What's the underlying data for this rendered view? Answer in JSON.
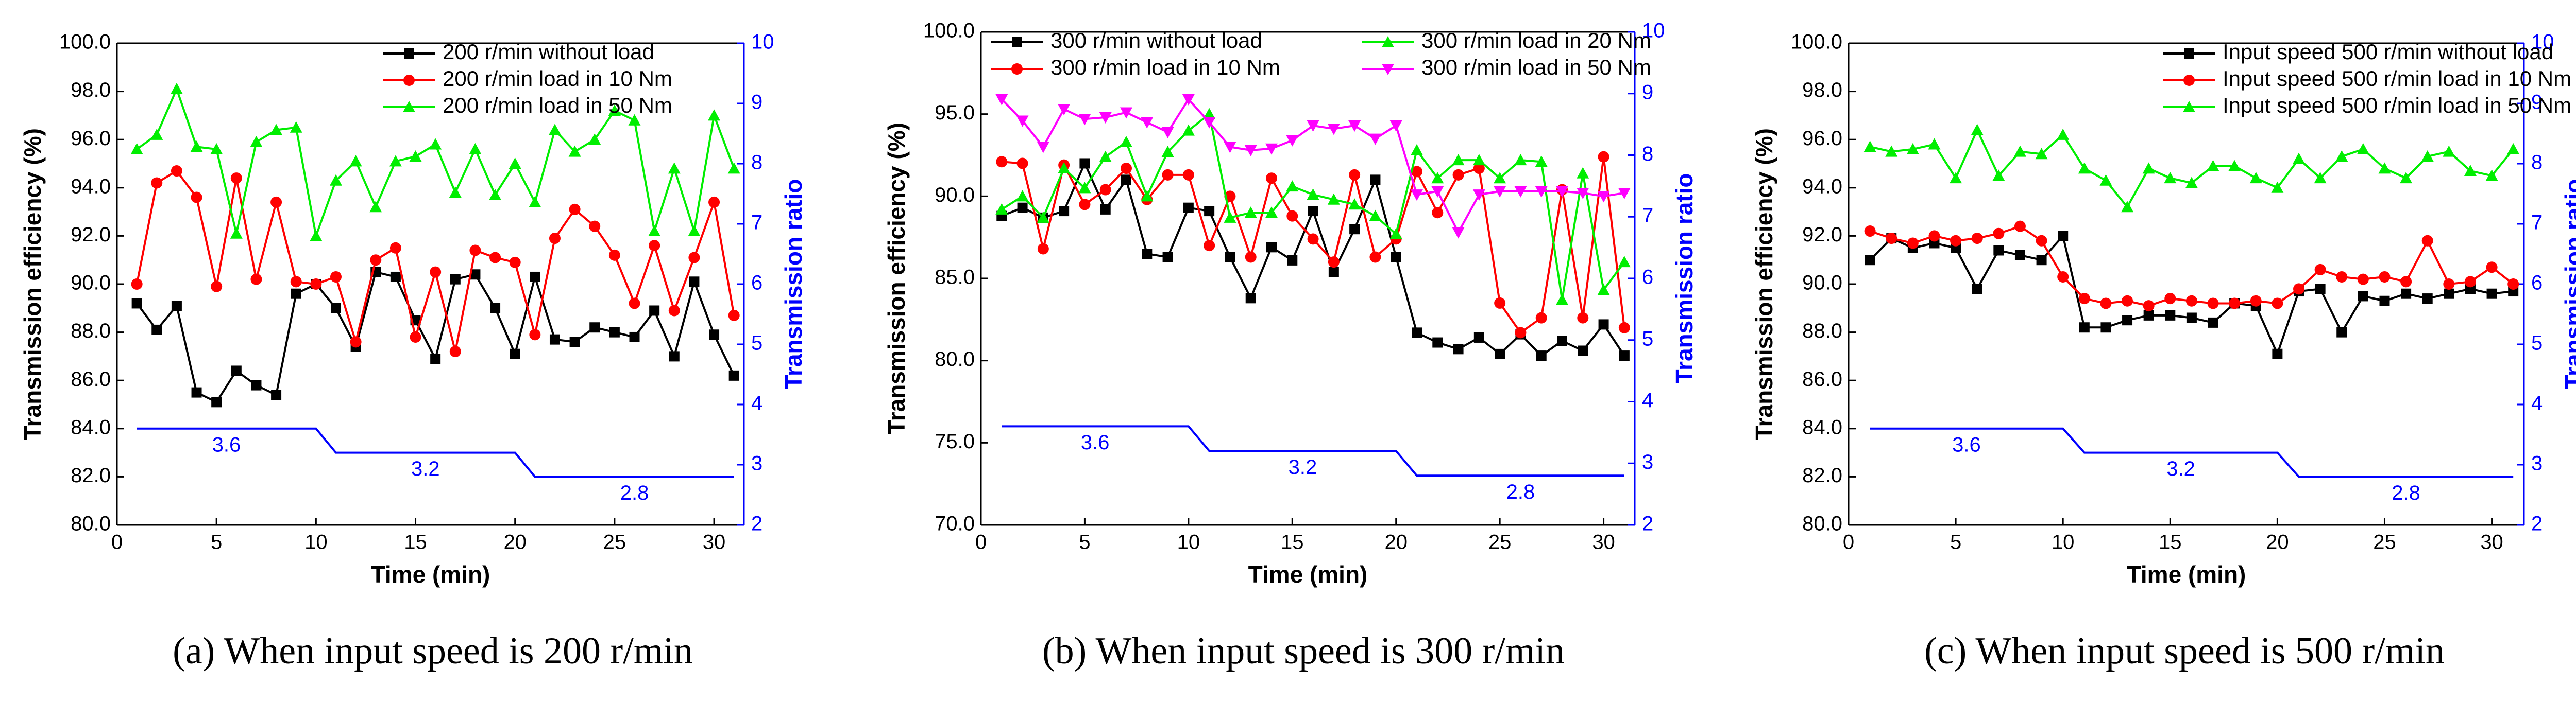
{
  "chart_data": [
    {
      "type": "line",
      "title": "(a) When input speed is 200 r/min",
      "xlabel": "Time (min)",
      "ylabel": "Transmission efficiency (%)",
      "y2label": "Transmission ratio",
      "x": [
        1,
        2,
        3,
        4,
        5,
        6,
        7,
        8,
        9,
        10,
        11,
        12,
        13,
        14,
        15,
        16,
        17,
        18,
        19,
        20,
        21,
        22,
        23,
        24,
        25,
        26,
        27,
        28,
        29,
        30,
        31
      ],
      "xlim": [
        0,
        31.5
      ],
      "xticks": [
        0,
        5,
        10,
        15,
        20,
        25,
        30
      ],
      "ylim": [
        80,
        100
      ],
      "yticks": [
        {
          "value": 80,
          "label": "80.0"
        },
        {
          "value": 82,
          "label": "82.0"
        },
        {
          "value": 84,
          "label": "84.0"
        },
        {
          "value": 86,
          "label": "86.0"
        },
        {
          "value": 88,
          "label": "88.0"
        },
        {
          "value": 90,
          "label": "90.0"
        },
        {
          "value": 92,
          "label": "92.0"
        },
        {
          "value": 94,
          "label": "94.0"
        },
        {
          "value": 96,
          "label": "96.0"
        },
        {
          "value": 98,
          "label": "98.0"
        },
        {
          "value": 100,
          "label": "100.0"
        }
      ],
      "y2lim": [
        2,
        10
      ],
      "y2ticks": [
        2,
        3,
        4,
        5,
        6,
        7,
        8,
        9,
        10
      ],
      "legend": "upper right",
      "legend_columns": 1,
      "annotations": [
        "3.6",
        "3.2",
        "2.8"
      ],
      "series": [
        {
          "name": "200 r/min without load",
          "color": "#000000",
          "marker": "square",
          "values": [
            89.2,
            88.1,
            89.1,
            85.5,
            85.1,
            86.4,
            85.8,
            85.4,
            89.6,
            90.0,
            89.0,
            87.4,
            90.5,
            90.3,
            88.5,
            86.9,
            90.2,
            90.4,
            89.0,
            87.1,
            90.3,
            87.7,
            87.6,
            88.2,
            88.0,
            87.8,
            88.9,
            87.0,
            90.1,
            87.9,
            86.2
          ]
        },
        {
          "name": "200 r/min load in 10 Nm",
          "color": "#ff0000",
          "marker": "circle",
          "values": [
            90.0,
            94.2,
            94.7,
            93.6,
            89.9,
            94.4,
            90.2,
            93.4,
            90.1,
            90.0,
            90.3,
            87.6,
            91.0,
            91.5,
            87.8,
            90.5,
            87.2,
            91.4,
            91.1,
            90.9,
            87.9,
            91.9,
            93.1,
            92.4,
            91.2,
            89.2,
            91.6,
            88.9,
            91.1,
            93.4,
            88.7
          ]
        },
        {
          "name": "200 r/min load in 50 Nm",
          "color": "#00ee00",
          "marker": "triangle",
          "values": [
            95.6,
            96.2,
            98.1,
            95.7,
            95.6,
            92.1,
            95.9,
            96.4,
            96.5,
            92.0,
            94.3,
            95.1,
            93.2,
            95.1,
            95.3,
            95.8,
            93.8,
            95.6,
            93.7,
            95.0,
            93.4,
            96.4,
            95.5,
            96.0,
            97.2,
            96.8,
            92.2,
            94.8,
            92.2,
            97.0,
            94.8
          ]
        },
        {
          "color": "#0000ff",
          "axis": "y2",
          "values": [
            3.6,
            3.6,
            3.6,
            3.6,
            3.6,
            3.6,
            3.6,
            3.6,
            3.6,
            3.6,
            3.2,
            3.2,
            3.2,
            3.2,
            3.2,
            3.2,
            3.2,
            3.2,
            3.2,
            3.2,
            2.8,
            2.8,
            2.8,
            2.8,
            2.8,
            2.8,
            2.8,
            2.8,
            2.8,
            2.8,
            2.8
          ]
        }
      ]
    },
    {
      "type": "line",
      "title": "(b) When input speed is 300 r/min",
      "xlabel": "Time (min)",
      "ylabel": "Transmission efficiency (%)",
      "y2label": "Transmission ratio",
      "x": [
        1,
        2,
        3,
        4,
        5,
        6,
        7,
        8,
        9,
        10,
        11,
        12,
        13,
        14,
        15,
        16,
        17,
        18,
        19,
        20,
        21,
        22,
        23,
        24,
        25,
        26,
        27,
        28,
        29,
        30,
        31
      ],
      "xlim": [
        0,
        31.5
      ],
      "xticks": [
        0,
        5,
        10,
        15,
        20,
        25,
        30
      ],
      "ylim": [
        70,
        100
      ],
      "yticks": [
        {
          "value": 70,
          "label": "70.0"
        },
        {
          "value": 75,
          "label": "75.0"
        },
        {
          "value": 80,
          "label": "80.0"
        },
        {
          "value": 85,
          "label": "85.0"
        },
        {
          "value": 90,
          "label": "90.0"
        },
        {
          "value": 95,
          "label": "95.0"
        },
        {
          "value": 100,
          "label": "100.0"
        }
      ],
      "y2lim": [
        2,
        10
      ],
      "y2ticks": [
        2,
        3,
        4,
        5,
        6,
        7,
        8,
        9,
        10
      ],
      "legend": "upper left",
      "legend_columns": 2,
      "annotations": [
        "3.6",
        "3.2",
        "2.8"
      ],
      "series": [
        {
          "name": "300 r/min without load",
          "color": "#000000",
          "marker": "square",
          "values": [
            88.8,
            89.3,
            88.7,
            89.1,
            92.0,
            89.2,
            91.0,
            86.5,
            86.3,
            89.3,
            89.1,
            86.3,
            83.8,
            86.9,
            86.1,
            89.1,
            85.4,
            88.0,
            91.0,
            86.3,
            81.7,
            81.1,
            80.7,
            81.4,
            80.4,
            81.6,
            80.3,
            81.2,
            80.6,
            82.2,
            80.3
          ]
        },
        {
          "name": "300 r/min load in 10 Nm",
          "color": "#ff0000",
          "marker": "circle",
          "values": [
            92.1,
            92.0,
            86.8,
            91.9,
            89.5,
            90.4,
            91.7,
            89.8,
            91.3,
            91.3,
            87.0,
            90.0,
            86.3,
            91.1,
            88.8,
            87.4,
            86.0,
            91.3,
            86.3,
            87.4,
            91.5,
            89.0,
            91.3,
            91.7,
            83.5,
            81.7,
            82.6,
            90.4,
            82.6,
            92.4,
            82.0
          ]
        },
        {
          "name": "300 r/min load in 20 Nm",
          "color": "#00ee00",
          "marker": "triangle",
          "values": [
            89.2,
            90.0,
            88.7,
            91.7,
            90.5,
            92.4,
            93.3,
            90.0,
            92.7,
            94.0,
            95.0,
            88.7,
            89.0,
            89.0,
            90.6,
            90.1,
            89.8,
            89.5,
            88.8,
            87.7,
            92.8,
            91.1,
            92.2,
            92.2,
            91.1,
            92.2,
            92.1,
            83.7,
            91.4,
            84.3,
            86.0
          ]
        },
        {
          "name": "300 r/min load in 50 Nm",
          "color": "#ff00ff",
          "marker": "triangle-down",
          "values": [
            95.9,
            94.6,
            93.0,
            95.3,
            94.7,
            94.8,
            95.1,
            94.5,
            93.9,
            95.9,
            94.5,
            93.0,
            92.8,
            92.9,
            93.4,
            94.3,
            94.1,
            94.3,
            93.5,
            94.3,
            90.1,
            90.3,
            87.8,
            90.1,
            90.3,
            90.3,
            90.3,
            90.3,
            90.2,
            90.0,
            90.2
          ]
        },
        {
          "color": "#0000ff",
          "axis": "y2",
          "values": [
            3.6,
            3.6,
            3.6,
            3.6,
            3.6,
            3.6,
            3.6,
            3.6,
            3.6,
            3.6,
            3.2,
            3.2,
            3.2,
            3.2,
            3.2,
            3.2,
            3.2,
            3.2,
            3.2,
            3.2,
            2.8,
            2.8,
            2.8,
            2.8,
            2.8,
            2.8,
            2.8,
            2.8,
            2.8,
            2.8,
            2.8
          ]
        }
      ]
    },
    {
      "type": "line",
      "title": "(c) When input speed is 500 r/min",
      "xlabel": "Time (min)",
      "ylabel": "Transmission efficiency (%)",
      "y2label": "Transmission ratio",
      "x": [
        1,
        2,
        3,
        4,
        5,
        6,
        7,
        8,
        9,
        10,
        11,
        12,
        13,
        14,
        15,
        16,
        17,
        18,
        19,
        20,
        21,
        22,
        23,
        24,
        25,
        26,
        27,
        28,
        29,
        30,
        31
      ],
      "xlim": [
        0,
        31.5
      ],
      "xticks": [
        0,
        5,
        10,
        15,
        20,
        25,
        30
      ],
      "ylim": [
        80,
        100
      ],
      "yticks": [
        {
          "value": 80,
          "label": "80.0"
        },
        {
          "value": 82,
          "label": "82.0"
        },
        {
          "value": 84,
          "label": "84.0"
        },
        {
          "value": 86,
          "label": "86.0"
        },
        {
          "value": 88,
          "label": "88.0"
        },
        {
          "value": 90,
          "label": "90.0"
        },
        {
          "value": 92,
          "label": "92.0"
        },
        {
          "value": 94,
          "label": "94.0"
        },
        {
          "value": 96,
          "label": "96.0"
        },
        {
          "value": 98,
          "label": "98.0"
        },
        {
          "value": 100,
          "label": "100.0"
        }
      ],
      "y2lim": [
        2,
        10
      ],
      "y2ticks": [
        2,
        3,
        4,
        5,
        6,
        7,
        8,
        9,
        10
      ],
      "legend": "upper right",
      "legend_columns": 1,
      "annotations": [
        "3.6",
        "3.2",
        "2.8"
      ],
      "series": [
        {
          "name": "Input speed 500 r/min without load",
          "color": "#000000",
          "marker": "square",
          "values": [
            91.0,
            91.9,
            91.5,
            91.7,
            91.5,
            89.8,
            91.4,
            91.2,
            91.0,
            92.0,
            88.2,
            88.2,
            88.5,
            88.7,
            88.7,
            88.6,
            88.4,
            89.2,
            89.1,
            87.1,
            89.7,
            89.8,
            88.0,
            89.5,
            89.3,
            89.6,
            89.4,
            89.6,
            89.8,
            89.6,
            89.7
          ]
        },
        {
          "name": "Input speed 500 r/min load in 10 Nm",
          "color": "#ff0000",
          "marker": "circle",
          "values": [
            92.2,
            91.9,
            91.7,
            92.0,
            91.8,
            91.9,
            92.1,
            92.4,
            91.8,
            90.3,
            89.4,
            89.2,
            89.3,
            89.1,
            89.4,
            89.3,
            89.2,
            89.2,
            89.3,
            89.2,
            89.8,
            90.6,
            90.3,
            90.2,
            90.3,
            90.1,
            91.8,
            90.0,
            90.1,
            90.7,
            90.0
          ]
        },
        {
          "name": "Input speed 500 r/min load in 50 Nm",
          "color": "#00ee00",
          "marker": "triangle",
          "values": [
            95.7,
            95.5,
            95.6,
            95.8,
            94.4,
            96.4,
            94.5,
            95.5,
            95.4,
            96.2,
            94.8,
            94.3,
            93.2,
            94.8,
            94.4,
            94.2,
            94.9,
            94.9,
            94.4,
            94.0,
            95.2,
            94.4,
            95.3,
            95.6,
            94.8,
            94.4,
            95.3,
            95.5,
            94.7,
            94.5,
            95.6
          ]
        },
        {
          "color": "#0000ff",
          "axis": "y2",
          "values": [
            3.6,
            3.6,
            3.6,
            3.6,
            3.6,
            3.6,
            3.6,
            3.6,
            3.6,
            3.6,
            3.2,
            3.2,
            3.2,
            3.2,
            3.2,
            3.2,
            3.2,
            3.2,
            3.2,
            3.2,
            2.8,
            2.8,
            2.8,
            2.8,
            2.8,
            2.8,
            2.8,
            2.8,
            2.8,
            2.8,
            2.8
          ]
        }
      ]
    }
  ]
}
